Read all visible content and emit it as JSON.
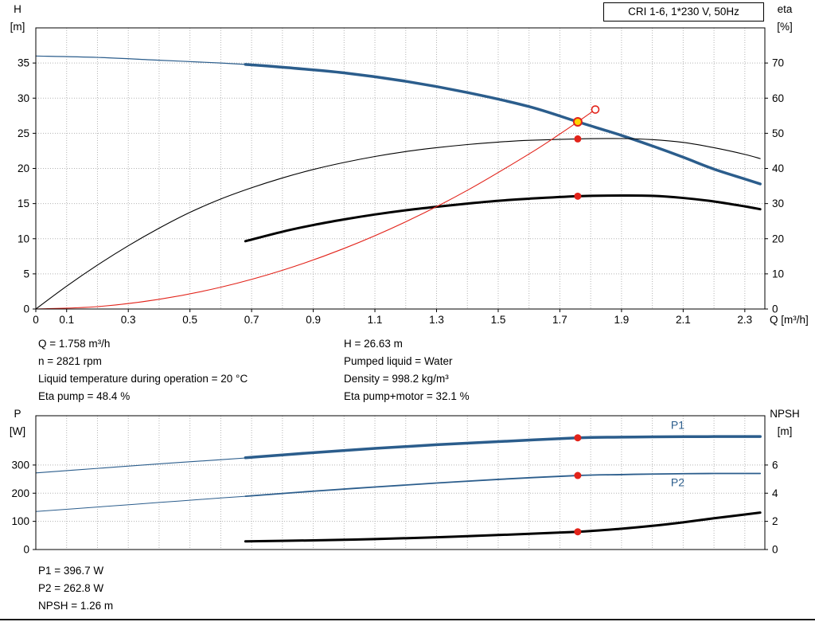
{
  "title_box": "CRI 1-6, 1*230 V, 50Hz",
  "colors": {
    "pump_blue": "#2b5d8c",
    "black": "#000000",
    "red": "#e2231a",
    "duty_yellow": "#ffd300",
    "grid": "#b3b3b3"
  },
  "info_top": {
    "left": [
      "Q = 1.758 m³/h",
      "n = 2821 rpm",
      "Liquid temperature during operation = 20 °C",
      "Eta pump = 48.4 %"
    ],
    "right": [
      "H = 26.63 m",
      "Pumped liquid = Water",
      "Density = 998.2 kg/m³",
      "Eta pump+motor = 32.1 %"
    ]
  },
  "info_bottom": [
    "P1 = 396.7 W",
    "P2 = 262.8 W",
    "NPSH = 1.26 m"
  ],
  "chart_data": [
    {
      "type": "line",
      "name": "hq-eta-chart",
      "x": {
        "min": 0,
        "max": 2.365,
        "grid_step": 0.1,
        "grid_end": 2.3,
        "ticks": [
          "0",
          "0.1",
          "0.3",
          "0.5",
          "0.7",
          "0.9",
          "1.1",
          "1.3",
          "1.5",
          "1.7",
          "1.9",
          "2.1",
          "2.3"
        ]
      },
      "x_title": "Q [m³/h]",
      "y_left": {
        "min": 0,
        "max": 40,
        "ticks": [
          "0",
          "5",
          "10",
          "15",
          "20",
          "25",
          "30",
          "35"
        ]
      },
      "y_left_title": [
        "H",
        "[m]"
      ],
      "y_right": {
        "min": 0,
        "max": 80,
        "ticks": [
          "0",
          "10",
          "20",
          "30",
          "40",
          "50",
          "60",
          "70"
        ]
      },
      "y_right_title": [
        "eta",
        "[%]"
      ],
      "series": [
        {
          "name": "pump-curve-thin",
          "axis": "left",
          "color": "pump_blue",
          "width": 1.2,
          "points": [
            [
              0,
              36
            ],
            [
              0.2,
              35.8
            ],
            [
              0.4,
              35.4
            ],
            [
              0.6,
              35
            ],
            [
              0.72,
              34.7
            ]
          ]
        },
        {
          "name": "pump-curve",
          "axis": "left",
          "color": "pump_blue",
          "width": 3.5,
          "points": [
            [
              0.68,
              34.8
            ],
            [
              0.8,
              34.4
            ],
            [
              1.0,
              33.6
            ],
            [
              1.2,
              32.4
            ],
            [
              1.4,
              30.8
            ],
            [
              1.6,
              28.8
            ],
            [
              1.758,
              26.63
            ],
            [
              1.9,
              24.7
            ],
            [
              2.0,
              23.2
            ],
            [
              2.1,
              21.6
            ],
            [
              2.2,
              19.9
            ],
            [
              2.3,
              18.5
            ],
            [
              2.35,
              17.8
            ]
          ]
        },
        {
          "name": "eta-pump-curve",
          "axis": "right",
          "color": "black",
          "width": 1.1,
          "points": [
            [
              0,
              0
            ],
            [
              0.1,
              6.5
            ],
            [
              0.2,
              12.5
            ],
            [
              0.3,
              18
            ],
            [
              0.4,
              23
            ],
            [
              0.5,
              27.5
            ],
            [
              0.6,
              31.3
            ],
            [
              0.7,
              34.5
            ],
            [
              0.8,
              37.3
            ],
            [
              0.9,
              39.7
            ],
            [
              1.0,
              41.7
            ],
            [
              1.1,
              43.4
            ],
            [
              1.2,
              44.8
            ],
            [
              1.3,
              45.9
            ],
            [
              1.4,
              46.8
            ],
            [
              1.5,
              47.5
            ],
            [
              1.6,
              48
            ],
            [
              1.758,
              48.4
            ],
            [
              1.9,
              48.5
            ],
            [
              2.0,
              48.2
            ],
            [
              2.1,
              47.4
            ],
            [
              2.2,
              45.9
            ],
            [
              2.3,
              44
            ],
            [
              2.35,
              42.8
            ]
          ]
        },
        {
          "name": "eta-pump-motor-curve",
          "axis": "right",
          "color": "black",
          "width": 3,
          "points": [
            [
              0.68,
              19.3
            ],
            [
              0.8,
              22
            ],
            [
              0.9,
              23.9
            ],
            [
              1.0,
              25.5
            ],
            [
              1.1,
              26.9
            ],
            [
              1.2,
              28.1
            ],
            [
              1.3,
              29.1
            ],
            [
              1.4,
              30
            ],
            [
              1.5,
              30.8
            ],
            [
              1.6,
              31.4
            ],
            [
              1.758,
              32.1
            ],
            [
              1.9,
              32.3
            ],
            [
              2.0,
              32.2
            ],
            [
              2.1,
              31.6
            ],
            [
              2.2,
              30.6
            ],
            [
              2.3,
              29.2
            ],
            [
              2.35,
              28.4
            ]
          ]
        },
        {
          "name": "system-curve",
          "axis": "left",
          "color": "red",
          "width": 1.1,
          "points": [
            [
              0,
              0
            ],
            [
              0.2,
              0.34
            ],
            [
              0.4,
              1.38
            ],
            [
              0.6,
              3.1
            ],
            [
              0.8,
              5.51
            ],
            [
              1.0,
              8.62
            ],
            [
              1.2,
              12.41
            ],
            [
              1.4,
              16.89
            ],
            [
              1.6,
              22.06
            ],
            [
              1.7,
              24.9
            ],
            [
              1.758,
              26.63
            ],
            [
              1.815,
              28.38
            ]
          ]
        }
      ],
      "markers": [
        {
          "type": "dot",
          "q": 1.758,
          "v": 48.4,
          "axis": "right",
          "name": "eta-pump-duty-dot"
        },
        {
          "type": "dot",
          "q": 1.758,
          "v": 32.1,
          "axis": "right",
          "name": "eta-pump-motor-duty-dot"
        },
        {
          "type": "open",
          "q": 1.815,
          "v": 28.38,
          "axis": "left",
          "name": "rated-point-marker"
        },
        {
          "type": "duty",
          "q": 1.758,
          "v": 26.63,
          "axis": "left",
          "name": "duty-point-marker"
        }
      ],
      "labels": []
    },
    {
      "type": "line",
      "name": "power-npsh-chart",
      "x": {
        "min": 0,
        "max": 2.365,
        "grid_step": 0.1,
        "grid_end": 2.3,
        "ticks": []
      },
      "x_title": "",
      "y_left": {
        "min": 0,
        "max": 475,
        "ticks": [
          "0",
          "100",
          "200",
          "300"
        ]
      },
      "y_left_title": [
        "P",
        "[W]"
      ],
      "y_right": {
        "min": 0,
        "max": 9.5,
        "ticks": [
          "0",
          "2",
          "4",
          "6"
        ]
      },
      "y_right_title": [
        "NPSH",
        "[m]"
      ],
      "series": [
        {
          "name": "p1-curve-thin",
          "axis": "left",
          "color": "pump_blue",
          "width": 1.1,
          "points": [
            [
              0,
              272
            ],
            [
              0.2,
              288
            ],
            [
              0.4,
              304
            ],
            [
              0.6,
              319
            ],
            [
              0.72,
              328
            ]
          ]
        },
        {
          "name": "p1-curve",
          "axis": "left",
          "color": "pump_blue",
          "width": 3.5,
          "points": [
            [
              0.68,
              326
            ],
            [
              0.9,
              344
            ],
            [
              1.1,
              359
            ],
            [
              1.3,
              372
            ],
            [
              1.5,
              383
            ],
            [
              1.758,
              396.7
            ],
            [
              1.9,
              399
            ],
            [
              2.0,
              400
            ],
            [
              2.2,
              401
            ],
            [
              2.35,
              401
            ]
          ]
        },
        {
          "name": "p2-curve-thin",
          "axis": "left",
          "color": "pump_blue",
          "width": 1,
          "points": [
            [
              0,
              135
            ],
            [
              0.2,
              151
            ],
            [
              0.4,
              167
            ],
            [
              0.6,
              183
            ],
            [
              0.72,
              192
            ]
          ]
        },
        {
          "name": "p2-curve",
          "axis": "left",
          "color": "pump_blue",
          "width": 1.8,
          "points": [
            [
              0.68,
              189
            ],
            [
              0.9,
              207
            ],
            [
              1.1,
              222
            ],
            [
              1.3,
              236
            ],
            [
              1.5,
              249
            ],
            [
              1.758,
              262.8
            ],
            [
              1.9,
              266
            ],
            [
              2.0,
              268
            ],
            [
              2.2,
              270
            ],
            [
              2.35,
              270
            ]
          ]
        },
        {
          "name": "npsh-curve",
          "axis": "right",
          "color": "black",
          "width": 3,
          "points": [
            [
              0.68,
              0.58
            ],
            [
              0.9,
              0.65
            ],
            [
              1.1,
              0.74
            ],
            [
              1.3,
              0.87
            ],
            [
              1.5,
              1.03
            ],
            [
              1.758,
              1.26
            ],
            [
              1.9,
              1.48
            ],
            [
              2.0,
              1.68
            ],
            [
              2.1,
              1.93
            ],
            [
              2.2,
              2.22
            ],
            [
              2.35,
              2.62
            ]
          ]
        }
      ],
      "markers": [
        {
          "type": "dot",
          "q": 1.758,
          "v": 396.7,
          "axis": "left",
          "name": "p1-duty-dot"
        },
        {
          "type": "dot",
          "q": 1.758,
          "v": 262.8,
          "axis": "left",
          "name": "p2-duty-dot"
        },
        {
          "type": "dot",
          "q": 1.758,
          "v": 1.26,
          "axis": "right",
          "name": "npsh-duty-dot"
        }
      ],
      "labels": [
        {
          "text": "P1",
          "q": 2.06,
          "v": 428,
          "axis": "left",
          "color": "pump_blue",
          "name": "p1-curve-label"
        },
        {
          "text": "P2",
          "q": 2.06,
          "v": 225,
          "axis": "left",
          "color": "pump_blue",
          "name": "p2-curve-label"
        }
      ]
    }
  ]
}
